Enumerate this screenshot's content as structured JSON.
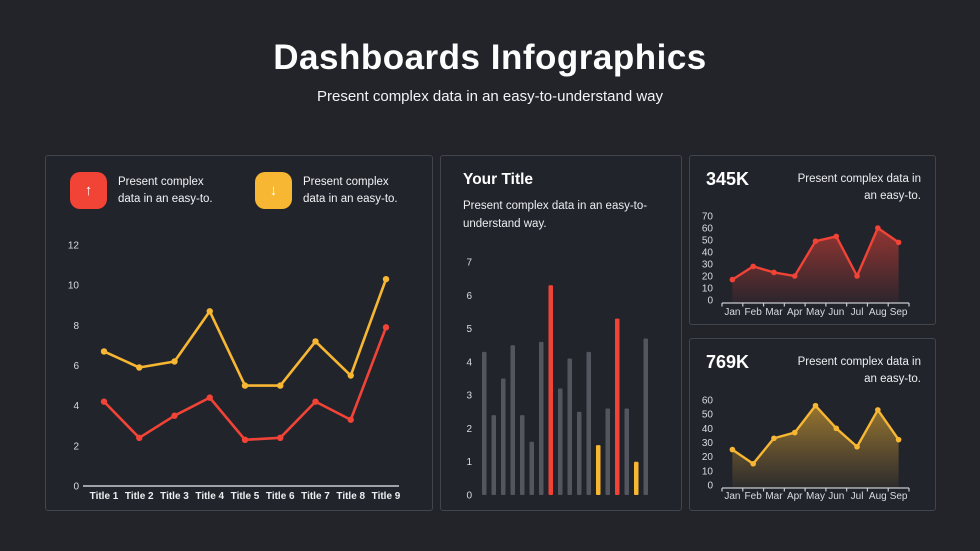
{
  "page": {
    "title": "Dashboards Infographics",
    "subtitle": "Present complex data in an easy-to-understand way"
  },
  "colors": {
    "background": "#22242a",
    "panel_border": "#41454e",
    "red": "#f14336",
    "yellow": "#f7b733",
    "gray": "#51565f",
    "axis": "#c9cbd1",
    "text": "#ffffff"
  },
  "left_panel": {
    "legend": [
      {
        "icon": "arrow-up-icon",
        "glyph": "↑",
        "color": "#f14336",
        "label": "Present complex data in an easy-to."
      },
      {
        "icon": "arrow-down-icon",
        "glyph": "↓",
        "color": "#f7b733",
        "label": "Present complex data in an easy-to."
      }
    ]
  },
  "middle_panel": {
    "title": "Your Title",
    "description": "Present complex data in an easy-to-understand way."
  },
  "right_top_panel": {
    "value": "345K",
    "description": "Present complex data in an easy-to."
  },
  "right_bottom_panel": {
    "value": "769K",
    "description": "Present complex data in an easy-to."
  },
  "chart_data": [
    {
      "id": "lines",
      "type": "line",
      "title": "",
      "categories": [
        "Title 1",
        "Title 2",
        "Title 3",
        "Title 4",
        "Title 5",
        "Title 6",
        "Title 7",
        "Title 8",
        "Title 9"
      ],
      "series": [
        {
          "name": "yellow-series",
          "color": "#f7b733",
          "values": [
            6.7,
            5.9,
            6.2,
            8.7,
            5.0,
            5.0,
            7.2,
            5.5,
            10.3
          ]
        },
        {
          "name": "red-series",
          "color": "#f14336",
          "values": [
            4.2,
            2.4,
            3.5,
            4.4,
            2.3,
            2.4,
            4.2,
            3.3,
            7.9
          ]
        }
      ],
      "ylim": [
        0,
        12
      ],
      "yticks": [
        0,
        2,
        4,
        6,
        8,
        10,
        12
      ],
      "grid": false,
      "legend_position": "top"
    },
    {
      "id": "bars",
      "type": "bar",
      "title": "Your Title",
      "values": [
        4.3,
        2.4,
        3.5,
        4.5,
        2.4,
        1.6,
        4.6,
        6.3,
        3.2,
        4.1,
        2.5,
        4.3,
        1.5,
        2.6,
        5.3,
        2.6,
        1.0,
        4.7
      ],
      "colors": [
        "gray",
        "gray",
        "gray",
        "gray",
        "gray",
        "gray",
        "gray",
        "red",
        "gray",
        "gray",
        "gray",
        "gray",
        "yellow",
        "gray",
        "red",
        "gray",
        "yellow",
        "gray"
      ],
      "ylim": [
        0,
        7
      ],
      "yticks": [
        0,
        1,
        2,
        3,
        4,
        5,
        6,
        7
      ],
      "grid": false
    },
    {
      "id": "area_red",
      "type": "area",
      "title": "345K",
      "categories": [
        "Jan",
        "Feb",
        "Mar",
        "Apr",
        "May",
        "Jun",
        "Jul",
        "Aug",
        "Sep"
      ],
      "values": [
        17,
        28,
        23,
        20,
        49,
        53,
        20,
        60,
        48
      ],
      "color": "#f14336",
      "ylim": [
        0,
        70
      ],
      "yticks": [
        0,
        10,
        20,
        30,
        40,
        50,
        60,
        70
      ],
      "grid": false
    },
    {
      "id": "area_yellow",
      "type": "area",
      "title": "769K",
      "categories": [
        "Jan",
        "Feb",
        "Mar",
        "Apr",
        "May",
        "Jun",
        "Jul",
        "Aug",
        "Sep"
      ],
      "values": [
        25,
        15,
        33,
        37,
        56,
        40,
        27,
        53,
        32
      ],
      "color": "#f7b733",
      "ylim": [
        0,
        60
      ],
      "yticks": [
        0,
        10,
        20,
        30,
        40,
        50,
        60
      ],
      "grid": false
    }
  ]
}
